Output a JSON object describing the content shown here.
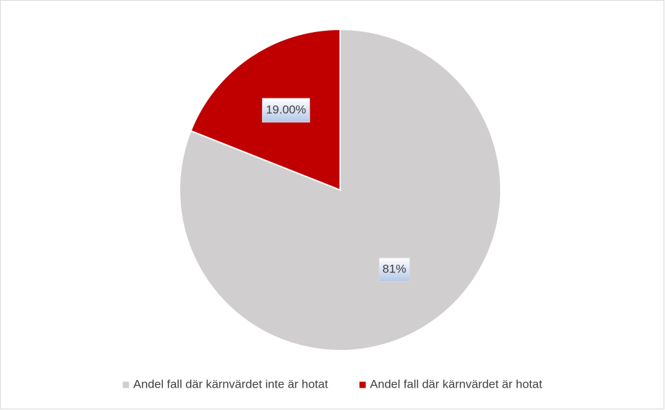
{
  "chart_data": {
    "type": "pie",
    "categories": [
      "Andel fall där kärnvärdet inte är hotat",
      "Andel fall där kärnvärdet är hotat"
    ],
    "values": [
      81,
      19
    ],
    "value_labels": [
      "81%",
      "19.00%"
    ],
    "colors": [
      "#d0cece",
      "#c00000"
    ],
    "legend": "bottom"
  }
}
